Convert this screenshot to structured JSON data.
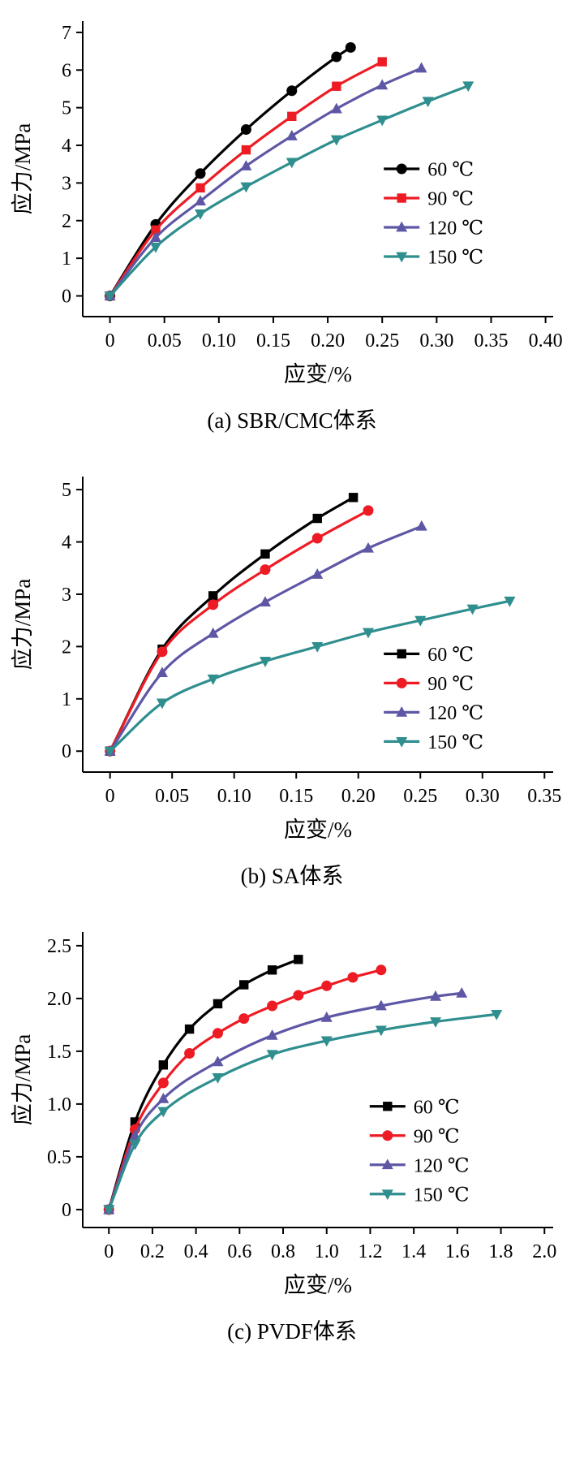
{
  "chart_data": [
    {
      "type": "line",
      "caption": "(a) SBR/CMC体系",
      "xlabel": "应变/%",
      "ylabel": "应力/MPa",
      "xlim": [
        -0.025,
        0.407
      ],
      "ylim": [
        -0.55,
        7.3
      ],
      "grid": false,
      "xticks": {
        "values": [
          0,
          0.05,
          0.1,
          0.15,
          0.2,
          0.25,
          0.3,
          0.35,
          0.4
        ],
        "labels": [
          "0",
          "0.05",
          "0.10",
          "0.15",
          "0.20",
          "0.25",
          "0.30",
          "0.35",
          "0.40"
        ]
      },
      "yticks": {
        "values": [
          0,
          1,
          2,
          3,
          4,
          5,
          6,
          7
        ],
        "labels": [
          "0",
          "1",
          "2",
          "3",
          "4",
          "5",
          "6",
          "7"
        ]
      },
      "legend": {
        "position": "center-right",
        "x": 0.64,
        "y": 0.5
      },
      "series": [
        {
          "name": "60 ℃",
          "color": "#000000",
          "marker": "circle",
          "x": [
            0,
            0.042,
            0.083,
            0.125,
            0.167,
            0.208,
            0.221
          ],
          "y": [
            0,
            1.9,
            3.25,
            4.42,
            5.45,
            6.35,
            6.6
          ]
        },
        {
          "name": "90 ℃",
          "color": "#ed1c24",
          "marker": "square",
          "x": [
            0,
            0.042,
            0.083,
            0.125,
            0.167,
            0.208,
            0.25
          ],
          "y": [
            0,
            1.75,
            2.87,
            3.88,
            4.77,
            5.57,
            6.22
          ]
        },
        {
          "name": "120 ℃",
          "color": "#5e57a5",
          "marker": "triangle-up",
          "x": [
            0,
            0.042,
            0.083,
            0.125,
            0.167,
            0.208,
            0.25,
            0.286
          ],
          "y": [
            0,
            1.55,
            2.52,
            3.45,
            4.25,
            4.97,
            5.6,
            6.05
          ]
        },
        {
          "name": "150 ℃",
          "color": "#2f8e8e",
          "marker": "triangle-down",
          "x": [
            0,
            0.042,
            0.083,
            0.125,
            0.167,
            0.208,
            0.25,
            0.292,
            0.329
          ],
          "y": [
            0,
            1.3,
            2.18,
            2.9,
            3.55,
            4.15,
            4.67,
            5.17,
            5.58
          ]
        }
      ]
    },
    {
      "type": "line",
      "caption": "(b) SA体系",
      "xlabel": "应变/%",
      "ylabel": "应力/MPa",
      "xlim": [
        -0.022,
        0.357
      ],
      "ylim": [
        -0.4,
        5.25
      ],
      "grid": false,
      "xticks": {
        "values": [
          0,
          0.05,
          0.1,
          0.15,
          0.2,
          0.25,
          0.3,
          0.35
        ],
        "labels": [
          "0",
          "0.05",
          "0.10",
          "0.15",
          "0.20",
          "0.25",
          "0.30",
          "0.35"
        ]
      },
      "yticks": {
        "values": [
          0,
          1,
          2,
          3,
          4,
          5
        ],
        "labels": [
          "0",
          "1",
          "2",
          "3",
          "4",
          "5"
        ]
      },
      "legend": {
        "position": "lower-right",
        "x": 0.64,
        "y": 0.6
      },
      "series": [
        {
          "name": "60 ℃",
          "color": "#000000",
          "marker": "square",
          "x": [
            0,
            0.042,
            0.083,
            0.125,
            0.167,
            0.196
          ],
          "y": [
            0,
            1.95,
            2.97,
            3.77,
            4.45,
            4.85
          ]
        },
        {
          "name": "90 ℃",
          "color": "#ed1c24",
          "marker": "circle",
          "x": [
            0,
            0.042,
            0.083,
            0.125,
            0.167,
            0.208
          ],
          "y": [
            0,
            1.9,
            2.8,
            3.47,
            4.07,
            4.6
          ]
        },
        {
          "name": "120 ℃",
          "color": "#5e57a5",
          "marker": "triangle-up",
          "x": [
            0,
            0.042,
            0.083,
            0.125,
            0.167,
            0.208,
            0.251
          ],
          "y": [
            0,
            1.5,
            2.25,
            2.85,
            3.38,
            3.88,
            4.3
          ]
        },
        {
          "name": "150 ℃",
          "color": "#2f8e8e",
          "marker": "triangle-down",
          "x": [
            0,
            0.042,
            0.083,
            0.125,
            0.167,
            0.208,
            0.25,
            0.292,
            0.322
          ],
          "y": [
            0,
            0.92,
            1.38,
            1.72,
            2.0,
            2.27,
            2.5,
            2.72,
            2.87
          ]
        }
      ]
    },
    {
      "type": "line",
      "caption": "(c) PVDF体系",
      "xlabel": "应变/%",
      "ylabel": "应力/MPa",
      "xlim": [
        -0.12,
        2.04
      ],
      "ylim": [
        -0.17,
        2.63
      ],
      "grid": false,
      "xticks": {
        "values": [
          0,
          0.2,
          0.4,
          0.6,
          0.8,
          1.0,
          1.2,
          1.4,
          1.6,
          1.8,
          2.0
        ],
        "labels": [
          "0",
          "0.2",
          "0.4",
          "0.6",
          "0.8",
          "1.0",
          "1.2",
          "1.4",
          "1.6",
          "1.8",
          "2.0"
        ]
      },
      "yticks": {
        "values": [
          0,
          0.5,
          1.0,
          1.5,
          2.0,
          2.5
        ],
        "labels": [
          "0",
          "0.5",
          "1.0",
          "1.5",
          "2.0",
          "2.5"
        ]
      },
      "legend": {
        "position": "lower-right",
        "x": 0.61,
        "y": 0.59
      },
      "series": [
        {
          "name": "60 ℃",
          "color": "#000000",
          "marker": "square",
          "x": [
            0,
            0.12,
            0.25,
            0.37,
            0.5,
            0.62,
            0.75,
            0.87
          ],
          "y": [
            0,
            0.83,
            1.37,
            1.71,
            1.95,
            2.13,
            2.27,
            2.37
          ]
        },
        {
          "name": "90 ℃",
          "color": "#ed1c24",
          "marker": "circle",
          "x": [
            0,
            0.12,
            0.25,
            0.37,
            0.5,
            0.62,
            0.75,
            0.87,
            1.0,
            1.12,
            1.25
          ],
          "y": [
            0,
            0.76,
            1.2,
            1.48,
            1.67,
            1.81,
            1.93,
            2.03,
            2.12,
            2.2,
            2.27
          ]
        },
        {
          "name": "120 ℃",
          "color": "#5e57a5",
          "marker": "triangle-up",
          "x": [
            0,
            0.12,
            0.25,
            0.5,
            0.75,
            1.0,
            1.25,
            1.5,
            1.62
          ],
          "y": [
            0,
            0.7,
            1.05,
            1.4,
            1.65,
            1.82,
            1.93,
            2.02,
            2.05
          ]
        },
        {
          "name": "150 ℃",
          "color": "#2f8e8e",
          "marker": "triangle-down",
          "x": [
            0,
            0.12,
            0.25,
            0.5,
            0.75,
            1.0,
            1.25,
            1.5,
            1.78
          ],
          "y": [
            0,
            0.62,
            0.93,
            1.25,
            1.47,
            1.6,
            1.7,
            1.78,
            1.85
          ]
        }
      ]
    }
  ]
}
